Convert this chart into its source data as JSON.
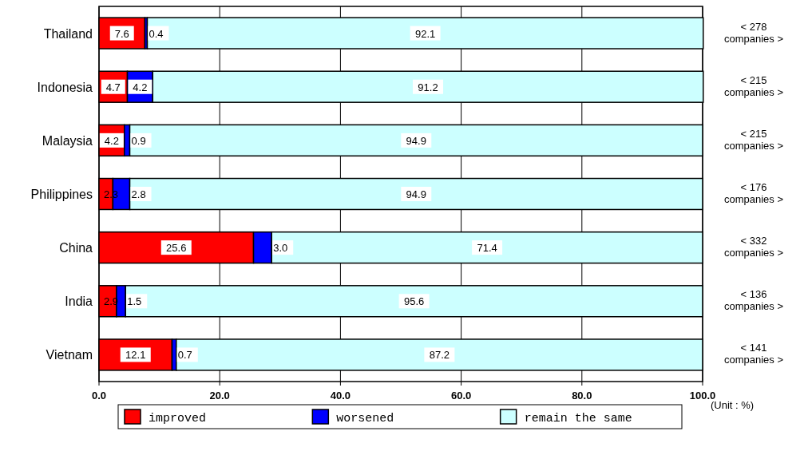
{
  "chart_data": {
    "type": "bar",
    "orientation": "horizontal",
    "stacked": true,
    "categories": [
      "Thailand",
      "Indonesia",
      "Malaysia",
      "Philippines",
      "China",
      "India",
      "Vietnam"
    ],
    "series": [
      {
        "name": "improved",
        "color": "#ff0000",
        "values": [
          7.6,
          4.7,
          4.2,
          2.3,
          25.6,
          2.9,
          12.1
        ],
        "value_labels": [
          "7.6",
          "4.7",
          "4.2",
          "2.3",
          "25.6",
          "2.9",
          "12.1"
        ]
      },
      {
        "name": "worsened",
        "color": "#0000ff",
        "values": [
          0.4,
          4.2,
          0.9,
          2.8,
          3.0,
          1.5,
          0.7
        ],
        "value_labels": [
          "0.4",
          "4.2",
          "0.9",
          "2.8",
          "3.0",
          "1.5",
          "0.7"
        ]
      },
      {
        "name": "remain the same",
        "color": "#ccffff",
        "values": [
          92.1,
          91.2,
          94.9,
          94.9,
          71.4,
          95.6,
          87.2
        ],
        "value_labels": [
          "92.1",
          "91.2",
          "94.9",
          "94.9",
          "71.4",
          "95.6",
          "87.2"
        ]
      }
    ],
    "xlim": [
      0,
      100
    ],
    "xticks": [
      {
        "value": 0,
        "label": "0.0"
      },
      {
        "value": 20,
        "label": "20.0"
      },
      {
        "value": 40,
        "label": "40.0"
      },
      {
        "value": 60,
        "label": "60.0"
      },
      {
        "value": 80,
        "label": "80.0"
      },
      {
        "value": 100,
        "label": "100.0"
      }
    ],
    "grid": "x",
    "legend": "bottom",
    "annotations": [
      "< 278 companies >",
      "< 215 companies >",
      "< 215 companies >",
      "< 176 companies >",
      "< 332 companies >",
      "< 136 companies >",
      "< 141 companies >",
      "(Unit : %)"
    ]
  }
}
